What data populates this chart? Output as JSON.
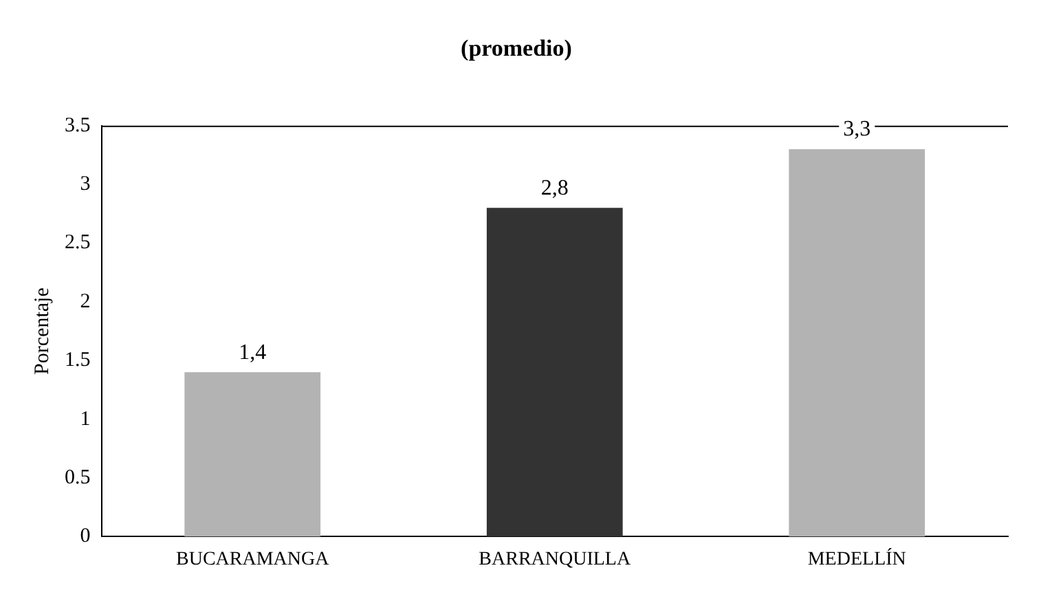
{
  "chart_data": {
    "type": "bar",
    "title": "(promedio)",
    "ylabel": "Porcentaje",
    "categories": [
      "BUCARAMANGA",
      "BARRANQUILLA",
      "MEDELLÍN"
    ],
    "values": [
      1.4,
      2.8,
      3.3
    ],
    "colors": [
      "#b3b3b3",
      "#333333",
      "#b3b3b3"
    ],
    "value_labels": [
      "1,4",
      "2,8",
      "3,3"
    ],
    "ylim": [
      0,
      3.5
    ],
    "yticks": [
      0,
      0.5,
      1,
      1.5,
      2,
      2.5,
      3,
      3.5
    ],
    "grid": false,
    "legend": false
  }
}
